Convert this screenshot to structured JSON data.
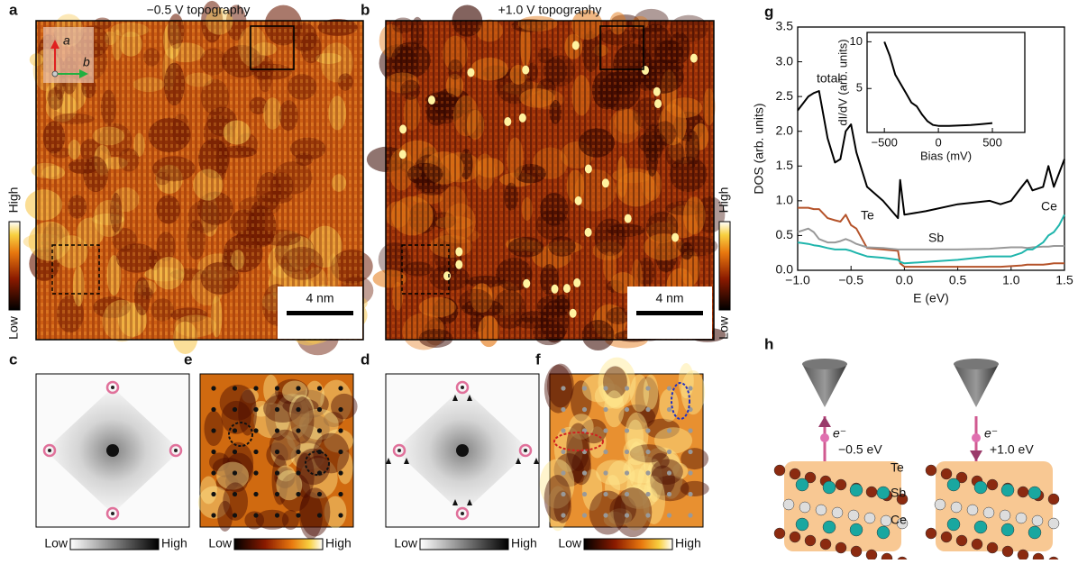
{
  "figure": {
    "panel_labels": [
      "a",
      "b",
      "c",
      "d",
      "e",
      "f",
      "g",
      "h"
    ],
    "topo_titles": [
      "−0.5 V topography",
      "+1.0 V topography"
    ],
    "lattice_axes": [
      "a",
      "b"
    ],
    "scale_bars": [
      "4 nm",
      "4 nm"
    ],
    "colorbars": [
      {
        "low": "Low",
        "high": "High"
      },
      {
        "low": "Low",
        "high": "High"
      },
      {
        "low": "Low",
        "high": "High"
      },
      {
        "low": "Low",
        "high": "High"
      },
      {
        "low": "Low",
        "high": "High"
      },
      {
        "low": "Low",
        "high": "High"
      }
    ],
    "model": {
      "electron": [
        "e⁻",
        "e⁻"
      ],
      "energies": [
        "−0.5 eV",
        "+1.0 eV"
      ],
      "atoms": [
        "Te",
        "Sb",
        "Ce"
      ]
    }
  },
  "chart_data": [
    {
      "type": "line",
      "xlabel": "E (eV)",
      "ylabel": "DOS (arb. units)",
      "x": [
        -1,
        -0.9,
        -0.85,
        -0.8,
        -0.72,
        -0.65,
        -0.6,
        -0.55,
        -0.5,
        -0.45,
        -0.35,
        -0.2,
        -0.06,
        -0.04,
        0,
        0.2,
        0.5,
        0.8,
        0.9,
        1.0,
        1.1,
        1.15,
        1.2,
        1.3,
        1.35,
        1.4,
        1.45,
        1.5
      ],
      "series": [
        {
          "name": "total",
          "color": "#000000",
          "values": [
            2.3,
            2.5,
            2.55,
            2.58,
            1.9,
            1.55,
            1.6,
            2.0,
            2.1,
            1.7,
            1.2,
            1.0,
            0.75,
            1.3,
            0.8,
            0.85,
            0.95,
            1.0,
            0.95,
            1.0,
            1.2,
            1.3,
            1.15,
            1.2,
            1.5,
            1.2,
            1.4,
            1.6
          ]
        },
        {
          "name": "Te",
          "color": "#b5532a",
          "values": [
            0.9,
            0.9,
            0.88,
            0.88,
            0.75,
            0.72,
            0.7,
            0.8,
            0.65,
            0.6,
            0.32,
            0.3,
            0.28,
            0.1,
            0.05,
            0.05,
            0.05,
            0.05,
            0.05,
            0.06,
            0.07,
            0.08,
            0.08,
            0.08,
            0.09,
            0.1,
            0.1,
            0.1
          ]
        },
        {
          "name": "Sb",
          "color": "#999999",
          "values": [
            0.55,
            0.6,
            0.55,
            0.45,
            0.4,
            0.4,
            0.42,
            0.45,
            0.42,
            0.38,
            0.33,
            0.32,
            0.3,
            0.3,
            0.3,
            0.3,
            0.3,
            0.31,
            0.32,
            0.33,
            0.33,
            0.32,
            0.33,
            0.34,
            0.34,
            0.35,
            0.35,
            0.35
          ]
        },
        {
          "name": "Ce",
          "color": "#1fb5ac",
          "values": [
            0.4,
            0.38,
            0.36,
            0.35,
            0.32,
            0.3,
            0.3,
            0.3,
            0.28,
            0.25,
            0.2,
            0.18,
            0.15,
            0.12,
            0.1,
            0.12,
            0.15,
            0.2,
            0.2,
            0.2,
            0.25,
            0.3,
            0.3,
            0.4,
            0.5,
            0.55,
            0.65,
            0.8
          ]
        }
      ],
      "xlim": [
        -1,
        1.5
      ],
      "xticks": [
        {
          "value": -1,
          "label": "−1.0"
        },
        {
          "value": -0.5,
          "label": "−0.5"
        },
        {
          "value": 0,
          "label": "0.0"
        },
        {
          "value": 0.5,
          "label": "0.5"
        },
        {
          "value": 1,
          "label": "1.0"
        },
        {
          "value": 1.5,
          "label": "1.5"
        }
      ],
      "ylim": [
        0,
        3.5
      ],
      "yticks": [
        {
          "value": 0,
          "label": "0.0"
        },
        {
          "value": 0.5,
          "label": "0.5"
        },
        {
          "value": 1,
          "label": "1.0"
        },
        {
          "value": 1.5,
          "label": "1.5"
        },
        {
          "value": 2,
          "label": "2.0"
        },
        {
          "value": 2.5,
          "label": "2.5"
        },
        {
          "value": 3,
          "label": "3.0"
        },
        {
          "value": 3.5,
          "label": "3.5"
        }
      ]
    },
    {
      "type": "line",
      "xlabel": "Bias (mV)",
      "ylabel": "dI/dV (arb. units)",
      "color": "#000000",
      "x": [
        -500,
        -450,
        -400,
        -300,
        -250,
        -200,
        -150,
        -100,
        -50,
        0,
        100,
        200,
        300,
        400,
        500
      ],
      "values": [
        10,
        8.5,
        6.5,
        4.5,
        3.5,
        3.1,
        2.2,
        1.5,
        1.1,
        1.0,
        1.0,
        1.05,
        1.1,
        1.2,
        1.3
      ],
      "xlim": [
        -660,
        800
      ],
      "xticks": [
        {
          "value": -500,
          "label": "−500"
        },
        0,
        500
      ],
      "ylim": [
        0.3,
        11
      ],
      "yticks": [
        5,
        10
      ]
    }
  ]
}
